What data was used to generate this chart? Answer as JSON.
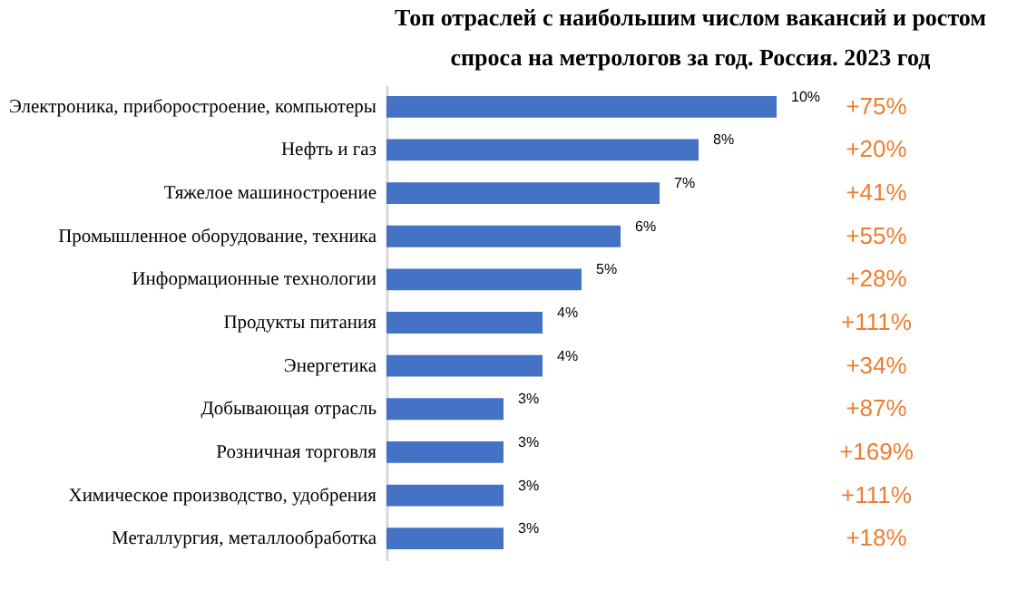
{
  "chart_data": {
    "type": "bar",
    "orientation": "horizontal",
    "title": "Топ отраслей с наибольшим числом вакансий и ростом спроса на метрологов за год. Россия. 2023 год",
    "categories": [
      "Электроника, приборостроение, компьютеры",
      "Нефть и газ",
      "Тяжелое машиностроение",
      "Промышленное оборудование, техника",
      "Информационные технологии",
      "Продукты питания",
      "Энергетика",
      "Добывающая отрасль",
      "Розничная торговля",
      "Химическое производство, удобрения",
      "Металлургия, металлообработка"
    ],
    "values": [
      10,
      8,
      7,
      6,
      5,
      4,
      4,
      3,
      3,
      3,
      3
    ],
    "value_labels": [
      "10%",
      "8%",
      "7%",
      "6%",
      "5%",
      "4%",
      "4%",
      "3%",
      "3%",
      "3%",
      "3%"
    ],
    "color": "#4472c4",
    "annotations": [
      "+75%",
      "+20%",
      "+41%",
      "+55%",
      "+28%",
      "+111%",
      "+34%",
      "+87%",
      "+169%",
      "+111%",
      "+18%"
    ]
  }
}
